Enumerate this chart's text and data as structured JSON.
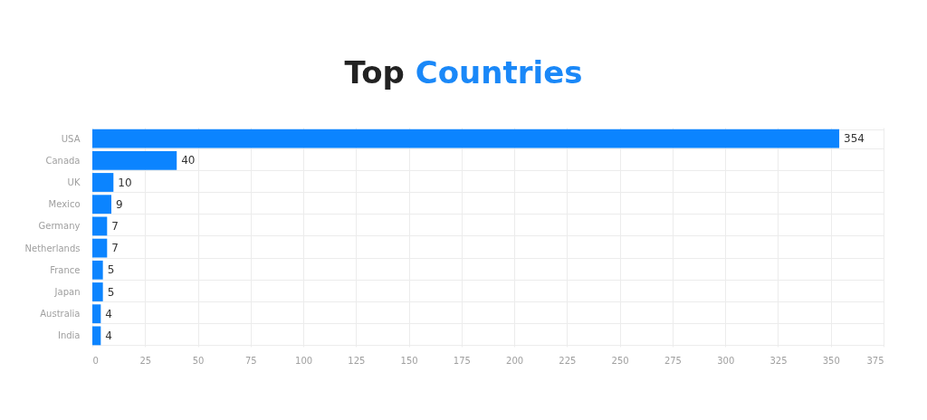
{
  "chart_data": {
    "type": "bar",
    "orientation": "horizontal",
    "title": "Top Countries",
    "categories": [
      "USA",
      "Canada",
      "UK",
      "Mexico",
      "Germany",
      "Netherlands",
      "France",
      "Japan",
      "Australia",
      "India"
    ],
    "values": [
      354,
      40,
      10,
      9,
      7,
      7,
      5,
      5,
      4,
      4
    ],
    "color": "#0b84ff",
    "xlim": [
      0,
      375
    ],
    "xticks": [
      0,
      25,
      50,
      75,
      100,
      125,
      150,
      175,
      200,
      225,
      250,
      275,
      300,
      325,
      350,
      375
    ],
    "grid": true,
    "data_labels": true
  }
}
